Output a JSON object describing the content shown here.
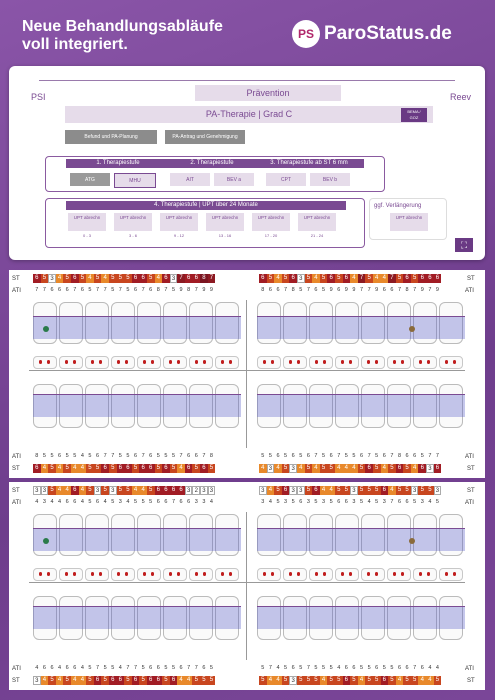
{
  "headline": {
    "line1": "Neue Behandlungsabläufe",
    "line2": "voll integriert."
  },
  "logo": {
    "badge": "PS",
    "text": "ParoStatus.de",
    "accent": "#b0276a"
  },
  "flow": {
    "psi": "PSI",
    "reev": "Reev",
    "praevention": "Prävention",
    "pa_therapie": "PA-Therapie | Grad C",
    "pa_tag": "BEMA / GOZ",
    "befund": "Befund und PA-Planung",
    "antrag": "PA-Antrag und Genehmigung",
    "stage1": "1. Therapiestufe",
    "stage2": "2. Therapiestufe",
    "stage3": "3. Therapiestufe ab ST 6 mm",
    "chips": [
      "ATG",
      "MHU",
      "AIT",
      "BEV a",
      "CPT",
      "BEV b"
    ],
    "stage4": "4. Therapiestufe | UPT über 24 Monate",
    "upt_label": "UPT abrechnen",
    "upt_labels": [
      "UPT abrechn",
      "UPT abrechn",
      "UPT abrechn",
      "UPT abrechn",
      "UPT abrechn",
      "UPT abrechn"
    ],
    "months": [
      "0 - 3",
      "3 - 6",
      "9 - 12",
      "13 - 16",
      "17 - 20",
      "21 - 24"
    ],
    "verlaengerung": "ggf. Verlängerung",
    "verl_upt": "UPT abrechn",
    "colors": {
      "primary": "#7a4a92",
      "chip": "#e6dcea"
    }
  },
  "chart_upper": {
    "st_label": "ST",
    "ati_label": "ATI",
    "st_left": [
      "6",
      "5",
      "3",
      "4",
      "5",
      "6",
      "5",
      "4",
      "5",
      "4",
      "5",
      "5",
      "5",
      "6",
      "6",
      "5",
      "4",
      "6",
      "3",
      "7",
      "6",
      "6",
      "8",
      "7"
    ],
    "st_right": [
      "6",
      "5",
      "4",
      "5",
      "6",
      "3",
      "5",
      "4",
      "5",
      "6",
      "5",
      "6",
      "4",
      "7",
      "5",
      "4",
      "4",
      "7",
      "5",
      "6",
      "5",
      "6",
      "6",
      "6"
    ],
    "ati_left": [
      "7",
      "7",
      "6",
      "6",
      "6",
      "7",
      "6",
      "5",
      "7",
      "7",
      "5",
      "7",
      "5",
      "6",
      "7",
      "6",
      "8",
      "7",
      "5",
      "9",
      "8",
      "7",
      "9",
      "9"
    ],
    "ati_right": [
      "8",
      "6",
      "6",
      "7",
      "8",
      "5",
      "7",
      "6",
      "5",
      "9",
      "6",
      "9",
      "9",
      "7",
      "7",
      "9",
      "6",
      "6",
      "7",
      "8",
      "7",
      "9",
      "7",
      "9"
    ],
    "ati_bottom_left": [
      "8",
      "5",
      "5",
      "6",
      "5",
      "5",
      "4",
      "5",
      "6",
      "7",
      "7",
      "5",
      "5",
      "6",
      "7",
      "6",
      "5",
      "5",
      "5",
      "7",
      "6",
      "6",
      "7",
      "8"
    ],
    "st_bottom_left": [
      "6",
      "4",
      "5",
      "4",
      "5",
      "4",
      "4",
      "5",
      "5",
      "6",
      "5",
      "6",
      "6",
      "5",
      "6",
      "6",
      "5",
      "6",
      "5",
      "4",
      "6",
      "5",
      "6",
      "5"
    ],
    "ati_bottom_right": [
      "5",
      "5",
      "6",
      "5",
      "6",
      "5",
      "6",
      "7",
      "5",
      "6",
      "7",
      "5",
      "5",
      "6",
      "7",
      "5",
      "6",
      "7",
      "8",
      "6",
      "6",
      "5",
      "7",
      "7"
    ],
    "st_bottom_right": [
      "4",
      "3",
      "4",
      "5",
      "3",
      "4",
      "5",
      "4",
      "5",
      "5",
      "4",
      "4",
      "4",
      "5",
      "6",
      "5",
      "4",
      "5",
      "6",
      "5",
      "4",
      "6",
      "3",
      "6"
    ]
  },
  "chart_lower": {
    "st_label": "ST",
    "ati_label": "ATI",
    "st_left": [
      "3",
      "3",
      "5",
      "4",
      "4",
      "6",
      "4",
      "5",
      "3",
      "5",
      "3",
      "5",
      "5",
      "4",
      "4",
      "5",
      "6",
      "6",
      "6",
      "6",
      "3",
      "2",
      "3",
      "3"
    ],
    "st_right": [
      "3",
      "4",
      "5",
      "6",
      "3",
      "3",
      "5",
      "6",
      "4",
      "4",
      "5",
      "5",
      "3",
      "5",
      "5",
      "5",
      "6",
      "4",
      "5",
      "5",
      "3",
      "5",
      "5",
      "3"
    ],
    "ati_left": [
      "4",
      "3",
      "4",
      "4",
      "6",
      "6",
      "4",
      "5",
      "6",
      "4",
      "5",
      "3",
      "4",
      "5",
      "5",
      "5",
      "6",
      "6",
      "7",
      "6",
      "6",
      "3",
      "3",
      "4"
    ],
    "ati_right": [
      "3",
      "4",
      "5",
      "3",
      "5",
      "6",
      "3",
      "5",
      "3",
      "5",
      "6",
      "6",
      "3",
      "5",
      "4",
      "5",
      "3",
      "7",
      "6",
      "6",
      "5",
      "3",
      "4",
      "5"
    ],
    "ati_bottom_left": [
      "4",
      "6",
      "6",
      "4",
      "6",
      "6",
      "4",
      "5",
      "7",
      "5",
      "5",
      "4",
      "7",
      "7",
      "5",
      "6",
      "6",
      "5",
      "5",
      "6",
      "7",
      "7",
      "6",
      "5"
    ],
    "st_bottom_left": [
      "3",
      "4",
      "5",
      "4",
      "5",
      "4",
      "4",
      "5",
      "6",
      "5",
      "6",
      "6",
      "5",
      "6",
      "5",
      "6",
      "6",
      "5",
      "6",
      "4",
      "4",
      "5",
      "5",
      "5"
    ],
    "ati_bottom_right": [
      "5",
      "7",
      "4",
      "5",
      "6",
      "5",
      "7",
      "5",
      "5",
      "5",
      "4",
      "6",
      "6",
      "5",
      "5",
      "6",
      "5",
      "5",
      "6",
      "6",
      "7",
      "6",
      "4",
      "4"
    ],
    "st_bottom_right": [
      "5",
      "4",
      "4",
      "5",
      "3",
      "5",
      "5",
      "5",
      "4",
      "5",
      "5",
      "6",
      "5",
      "4",
      "5",
      "5",
      "6",
      "5",
      "4",
      "5",
      "5",
      "4",
      "4",
      "5"
    ]
  },
  "cell_colors": {
    "3": "#ffffff",
    "2": "#ffffff",
    "4": "#e8892b",
    "5": "#c8461f",
    "6": "#a11c24",
    "7": "#8c1a22",
    "8": "#7a1520"
  }
}
